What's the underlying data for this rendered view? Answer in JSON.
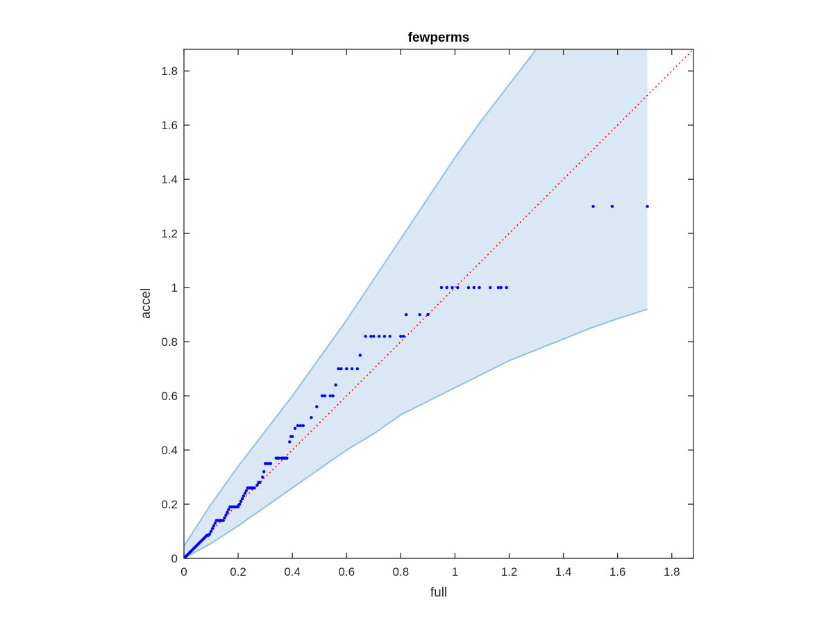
{
  "chart_data": {
    "type": "scatter",
    "title": "fewperms",
    "xlabel": "full",
    "ylabel": "accel",
    "xlim": [
      0,
      1.88
    ],
    "ylim": [
      0,
      1.88
    ],
    "xticks": [
      0,
      0.2,
      0.4,
      0.6,
      0.8,
      1,
      1.2,
      1.4,
      1.6,
      1.8
    ],
    "yticks": [
      0,
      0.2,
      0.4,
      0.6,
      0.8,
      1,
      1.2,
      1.4,
      1.6,
      1.8
    ],
    "xtick_labels": [
      "0",
      "0.2",
      "0.4",
      "0.6",
      "0.8",
      "1",
      "1.2",
      "1.4",
      "1.6",
      "1.8"
    ],
    "ytick_labels": [
      "0",
      "0.2",
      "0.4",
      "0.6",
      "0.8",
      "1",
      "1.2",
      "1.4",
      "1.6",
      "1.8"
    ],
    "grid": false,
    "colors": {
      "points": "#0000ff",
      "reference_line": "#ff0000",
      "band_fill": "#d9e8f4",
      "band_edge": "#8fc0e0",
      "axes": "#262626"
    },
    "reference_line": {
      "style": "dotted",
      "x": [
        0,
        1.88
      ],
      "y": [
        0,
        1.88
      ]
    },
    "confidence_band": {
      "upper": [
        [
          0,
          0.045
        ],
        [
          0.1,
          0.2
        ],
        [
          0.2,
          0.34
        ],
        [
          0.3,
          0.47
        ],
        [
          0.4,
          0.6
        ],
        [
          0.5,
          0.74
        ],
        [
          0.6,
          0.88
        ],
        [
          0.7,
          1.03
        ],
        [
          0.8,
          1.18
        ],
        [
          0.9,
          1.33
        ],
        [
          1.0,
          1.48
        ],
        [
          1.1,
          1.62
        ],
        [
          1.2,
          1.75
        ],
        [
          1.3,
          1.88
        ],
        [
          1.71,
          1.88
        ]
      ],
      "lower": [
        [
          0,
          0.0
        ],
        [
          0.1,
          0.055
        ],
        [
          0.2,
          0.12
        ],
        [
          0.3,
          0.19
        ],
        [
          0.4,
          0.26
        ],
        [
          0.5,
          0.33
        ],
        [
          0.6,
          0.4
        ],
        [
          0.7,
          0.46
        ],
        [
          0.8,
          0.53
        ],
        [
          0.9,
          0.58
        ],
        [
          1.0,
          0.63
        ],
        [
          1.1,
          0.68
        ],
        [
          1.2,
          0.73
        ],
        [
          1.3,
          0.77
        ],
        [
          1.4,
          0.81
        ],
        [
          1.5,
          0.85
        ],
        [
          1.6,
          0.885
        ],
        [
          1.71,
          0.92
        ]
      ]
    },
    "points": {
      "x": [
        0.005,
        0.01,
        0.015,
        0.02,
        0.025,
        0.03,
        0.035,
        0.04,
        0.045,
        0.05,
        0.055,
        0.06,
        0.065,
        0.07,
        0.075,
        0.08,
        0.085,
        0.09,
        0.095,
        0.1,
        0.105,
        0.11,
        0.115,
        0.12,
        0.125,
        0.13,
        0.135,
        0.14,
        0.145,
        0.15,
        0.155,
        0.16,
        0.165,
        0.17,
        0.175,
        0.18,
        0.185,
        0.19,
        0.195,
        0.2,
        0.205,
        0.21,
        0.215,
        0.22,
        0.225,
        0.23,
        0.235,
        0.24,
        0.245,
        0.25,
        0.255,
        0.26,
        0.27,
        0.275,
        0.28,
        0.29,
        0.295,
        0.3,
        0.305,
        0.31,
        0.315,
        0.32,
        0.34,
        0.345,
        0.35,
        0.36,
        0.365,
        0.37,
        0.375,
        0.38,
        0.39,
        0.395,
        0.4,
        0.41,
        0.42,
        0.43,
        0.44,
        0.47,
        0.49,
        0.51,
        0.52,
        0.54,
        0.55,
        0.56,
        0.57,
        0.58,
        0.6,
        0.62,
        0.64,
        0.65,
        0.67,
        0.69,
        0.7,
        0.72,
        0.74,
        0.76,
        0.8,
        0.81,
        0.82,
        0.87,
        0.9,
        0.95,
        0.97,
        0.99,
        1.01,
        1.05,
        1.07,
        1.09,
        1.13,
        1.16,
        1.17,
        1.19,
        1.51,
        1.58,
        1.71
      ],
      "y": [
        0.005,
        0.01,
        0.015,
        0.02,
        0.025,
        0.03,
        0.035,
        0.04,
        0.045,
        0.05,
        0.055,
        0.06,
        0.065,
        0.07,
        0.075,
        0.08,
        0.085,
        0.085,
        0.09,
        0.1,
        0.11,
        0.12,
        0.13,
        0.14,
        0.14,
        0.14,
        0.14,
        0.14,
        0.14,
        0.15,
        0.16,
        0.17,
        0.18,
        0.19,
        0.19,
        0.19,
        0.19,
        0.19,
        0.19,
        0.19,
        0.2,
        0.21,
        0.22,
        0.23,
        0.24,
        0.25,
        0.26,
        0.26,
        0.26,
        0.26,
        0.26,
        0.26,
        0.27,
        0.28,
        0.28,
        0.3,
        0.32,
        0.35,
        0.35,
        0.35,
        0.35,
        0.35,
        0.37,
        0.37,
        0.37,
        0.37,
        0.37,
        0.37,
        0.37,
        0.37,
        0.43,
        0.45,
        0.45,
        0.48,
        0.49,
        0.49,
        0.49,
        0.52,
        0.56,
        0.6,
        0.6,
        0.6,
        0.6,
        0.64,
        0.7,
        0.7,
        0.7,
        0.7,
        0.7,
        0.75,
        0.82,
        0.82,
        0.82,
        0.82,
        0.82,
        0.82,
        0.82,
        0.82,
        0.9,
        0.9,
        0.9,
        1.0,
        1.0,
        1.0,
        1.0,
        1.0,
        1.0,
        1.0,
        1.0,
        1.0,
        1.0,
        1.0,
        1.3,
        1.3,
        1.3
      ]
    }
  }
}
